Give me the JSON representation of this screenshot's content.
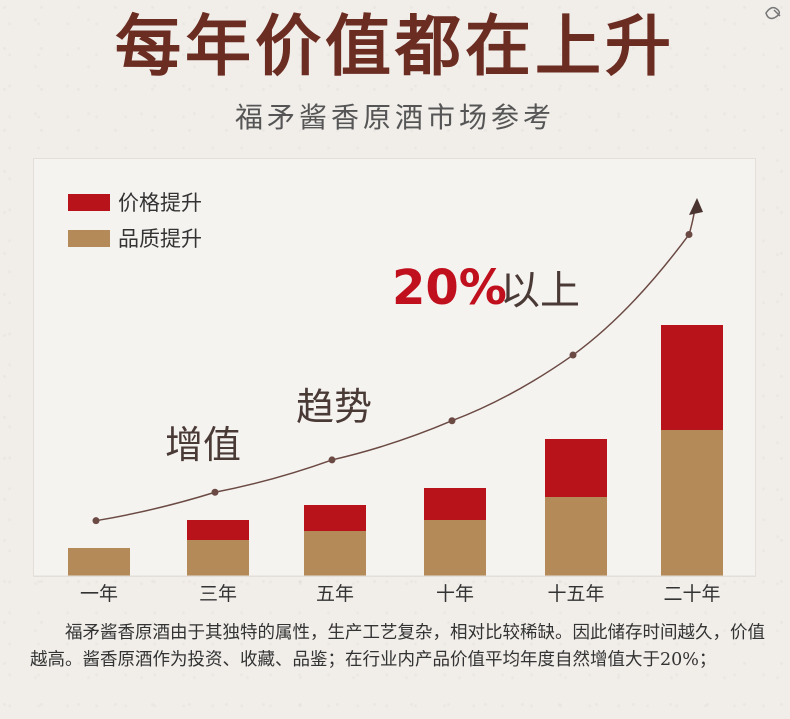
{
  "header": {
    "title": "每年价值都在上升",
    "subtitle": "福矛酱香原酒市场参考"
  },
  "chart_data": {
    "type": "bar",
    "stacked": true,
    "categories": [
      "一年",
      "三年",
      "五年",
      "十年",
      "十五年",
      "二十年"
    ],
    "series": [
      {
        "name": "品质提升",
        "color": "#b38a58",
        "values": [
          28,
          36,
          45,
          56,
          79,
          146
        ]
      },
      {
        "name": "价格提升",
        "color": "#b8121b",
        "values": [
          0,
          20,
          26,
          32,
          58,
          105
        ]
      }
    ],
    "trend": {
      "points": [
        34,
        63,
        96,
        136,
        203,
        326
      ],
      "annotations": [
        "增值",
        "趋势",
        "20%以上"
      ]
    },
    "legend_position": "top-left",
    "grid": false
  },
  "annotations": {
    "left_text": "增值",
    "mid_text": "趋势",
    "highlight_value": "20%",
    "highlight_suffix": "以上"
  },
  "colors": {
    "title": "#6b2c22",
    "quality": "#b38a58",
    "price": "#b8121b",
    "trend": "#6b4a44",
    "highlight": "#c0101e"
  },
  "description": "福矛酱香原酒由于其独特的属性，生产工艺复杂，相对比较稀缺。因此储存时间越久，价值越高。酱香原酒作为投资、收藏、品鉴；在行业内产品价值平均年度自然增值大于20%；"
}
